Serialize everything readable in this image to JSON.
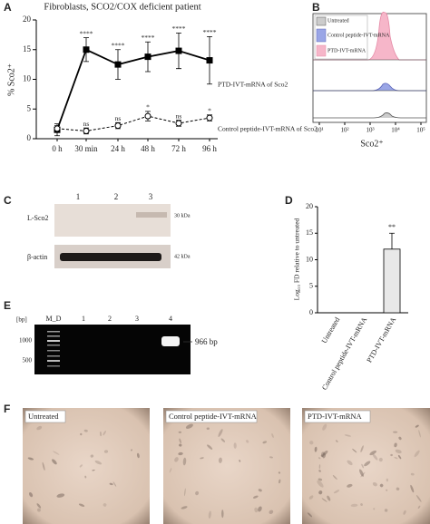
{
  "panel_letters": [
    "A",
    "B",
    "C",
    "D",
    "E",
    "F"
  ],
  "chart_data": [
    {
      "type": "line",
      "title": "Fibroblasts, SCO2/COX deficient patient",
      "y_label": "% Sco2⁺",
      "categories": [
        "0 h",
        "30 min",
        "24 h",
        "48 h",
        "72 h",
        "96 h"
      ],
      "ylim": [
        0,
        20
      ],
      "yticks": [
        0,
        5,
        10,
        15,
        20
      ],
      "series": [
        {
          "name": "PTD-IVT-mRNA of Sco2",
          "color": "#000000",
          "marker": "square",
          "values": [
            1.5,
            15,
            12.5,
            13.8,
            14.8,
            13.2
          ],
          "errors": [
            1,
            2,
            2.5,
            2.5,
            3,
            4
          ],
          "annotations": [
            null,
            "****",
            "****",
            "****",
            "****",
            "****"
          ]
        },
        {
          "name": "Control peptide-IVT-mRNA of Sco2",
          "color": "#000000",
          "marker": "circle",
          "values": [
            1.7,
            1.3,
            2.2,
            3.8,
            2.6,
            3.5
          ],
          "errors": [
            0.5,
            0.5,
            0.5,
            0.8,
            0.5,
            0.5
          ],
          "annotations": [
            null,
            "ns",
            "ns",
            "*",
            "ns",
            "*"
          ]
        }
      ]
    },
    {
      "type": "bar",
      "y_label": "Log₁₀ FD relative to untreated",
      "categories": [
        "Untreated",
        "Control peptide-IVT-mRNA",
        "PTD-IVT-mRNA"
      ],
      "values": [
        0,
        0,
        12
      ],
      "errors": [
        null,
        null,
        3
      ],
      "annotations": [
        null,
        null,
        "**"
      ],
      "color": "#e8e8e8",
      "ylim": [
        0,
        20
      ],
      "yticks": [
        0,
        5,
        10,
        15,
        20
      ]
    }
  ],
  "panel_b": {
    "legend": [
      "Untreated",
      "Control peptide-IVT-mRNA",
      "PTD-IVT-mRNA"
    ],
    "xticks": [
      "10¹",
      "10²",
      "10³",
      "10⁴",
      "10⁵"
    ],
    "x_label": "Sco2⁺"
  },
  "panel_c": {
    "lanes": [
      "1",
      "2",
      "3"
    ],
    "rows": [
      "L-Sco2",
      "β-actin"
    ],
    "sizes": [
      "30 kDa",
      "42 kDa"
    ]
  },
  "panel_e": {
    "unit": "[bp]",
    "lanes": [
      "M_D",
      "1",
      "2",
      "3",
      "4"
    ],
    "markers": [
      "1000",
      "500"
    ],
    "band": "966 bp"
  },
  "panel_f": {
    "labels": [
      "Untreated",
      "Control peptide-IVT-mRNA",
      "PTD-IVT-mRNA"
    ]
  }
}
